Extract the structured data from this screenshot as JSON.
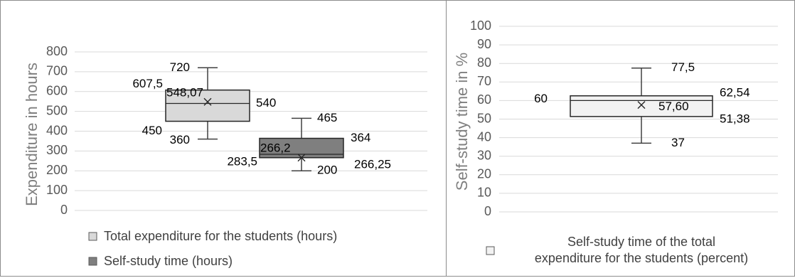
{
  "chart_data": [
    {
      "type": "box",
      "title": "",
      "xlabel": "",
      "ylabel": "Expenditure in hours",
      "ylim": [
        0,
        800
      ],
      "yticks": [
        0,
        100,
        200,
        300,
        400,
        500,
        600,
        700,
        800
      ],
      "grid": true,
      "legend_position": "bottom",
      "series": [
        {
          "name": "Total expenditure for the students (hours)",
          "color": "#d9d9d9",
          "min": 360,
          "q1": 450,
          "median": 540,
          "q3": 607.5,
          "max": 720,
          "mean": 548.07,
          "labels": {
            "max": "720",
            "q3": "607,5",
            "mean": "548,07",
            "median": "540",
            "q1": "450",
            "min": "360"
          }
        },
        {
          "name": "Self-study time (hours)",
          "color": "#7f7f7f",
          "min": 200,
          "q1": 266.25,
          "median": 283.5,
          "q3": 364,
          "max": 465,
          "mean": 266.2,
          "labels": {
            "max": "465",
            "q3": "364",
            "mean": "266,2",
            "median": "283,5",
            "q1": "266,25",
            "min": "200"
          }
        }
      ]
    },
    {
      "type": "box",
      "title": "",
      "xlabel": "",
      "ylabel": "Self-study time in %",
      "ylim": [
        0,
        100
      ],
      "yticks": [
        0,
        10,
        20,
        30,
        40,
        50,
        60,
        70,
        80,
        90,
        100
      ],
      "grid": true,
      "legend_position": "bottom",
      "series": [
        {
          "name_lines": [
            "Self-study time of the total",
            "expenditure for the students (percent)"
          ],
          "color": "#f2f2f2",
          "min": 37,
          "q1": 51.38,
          "median": 60,
          "q3": 62.54,
          "max": 77.5,
          "mean": 57.6,
          "labels": {
            "max": "77,5",
            "q3": "62,54",
            "median": "60",
            "mean": "57,60",
            "q1": "51,38",
            "min": "37"
          }
        }
      ]
    }
  ]
}
